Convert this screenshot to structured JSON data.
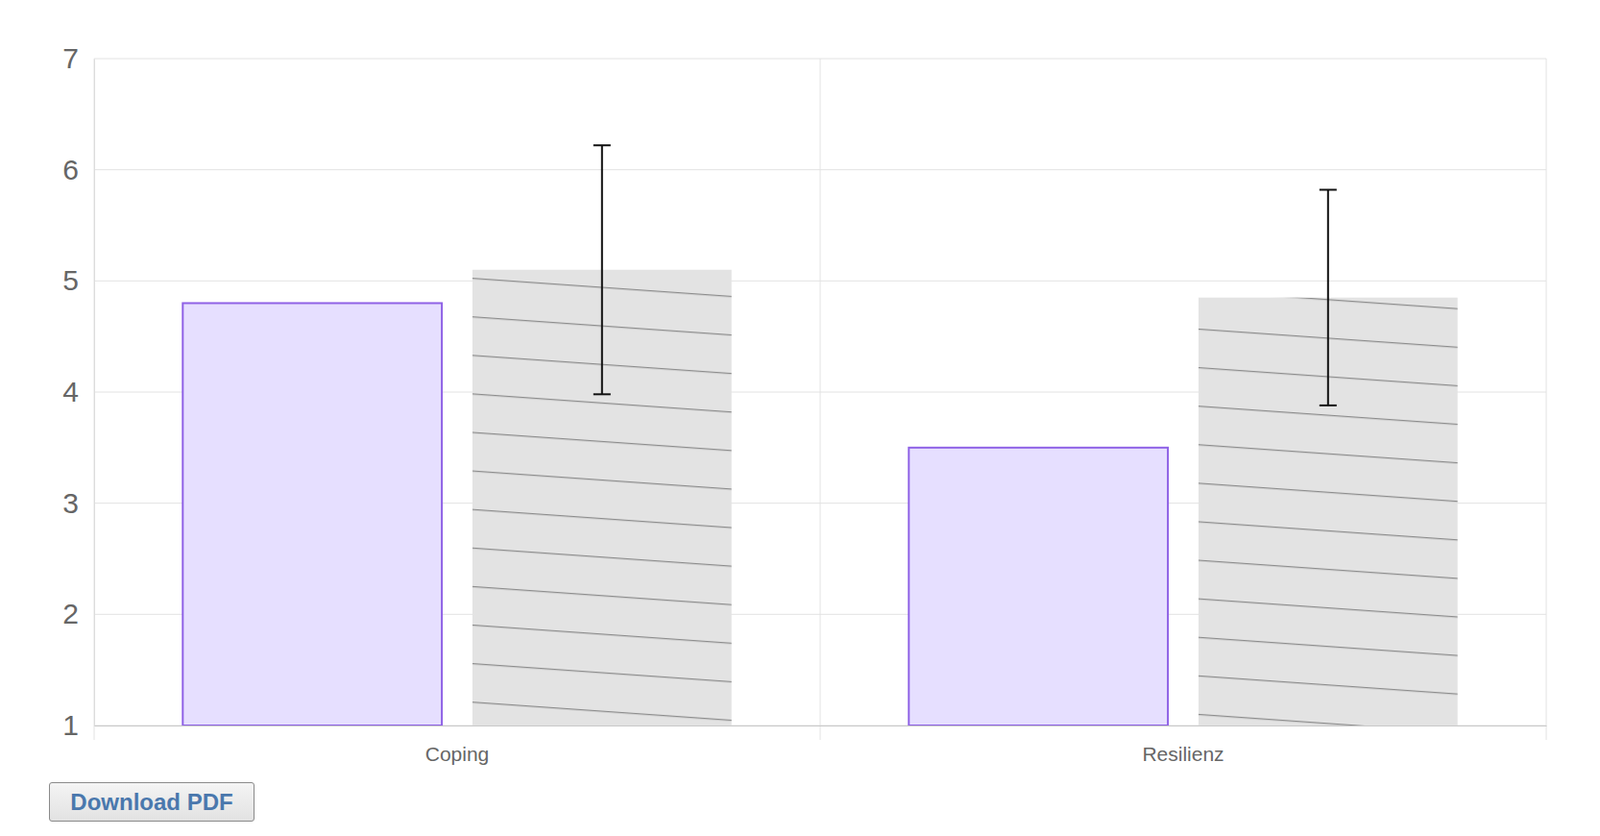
{
  "chart_data": {
    "type": "bar",
    "categories": [
      "Coping",
      "Resilienz"
    ],
    "series": [
      {
        "color": "#e6dfff",
        "values": [
          4.8,
          3.5
        ]
      },
      {
        "color": "#e3e3e3",
        "values": [
          5.1,
          4.85
        ],
        "errors": [
          1.12,
          0.97
        ]
      }
    ],
    "ylim": [
      1,
      7
    ],
    "yticks": [
      1,
      2,
      3,
      4,
      5,
      6,
      7
    ],
    "grid": true
  },
  "button": "Download PDF"
}
